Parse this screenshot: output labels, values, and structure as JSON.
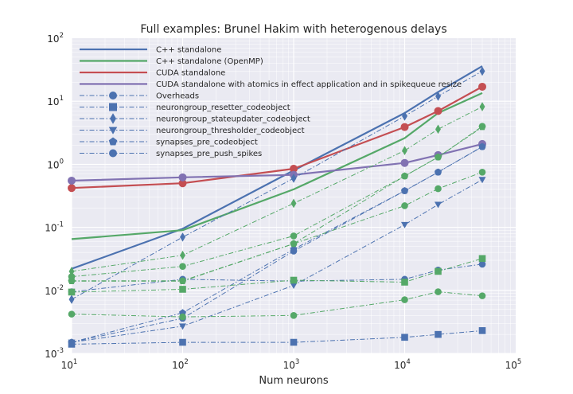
{
  "chart_data": {
    "type": "line",
    "title": "Full examples: Brunel Hakim with heterogenous delays",
    "xlabel": "Num neurons",
    "ylabel": "",
    "x_scale": "log",
    "y_scale": "log",
    "xlim": [
      10,
      100000
    ],
    "ylim": [
      0.001,
      100
    ],
    "x_ticks": [
      {
        "base": "10",
        "exp": "1",
        "value": 10
      },
      {
        "base": "10",
        "exp": "2",
        "value": 100
      },
      {
        "base": "10",
        "exp": "3",
        "value": 1000
      },
      {
        "base": "10",
        "exp": "4",
        "value": 10000
      },
      {
        "base": "10",
        "exp": "5",
        "value": 100000
      }
    ],
    "y_ticks": [
      {
        "base": "10",
        "exp": "-3",
        "value": 0.001
      },
      {
        "base": "10",
        "exp": "-2",
        "value": 0.01
      },
      {
        "base": "10",
        "exp": "-1",
        "value": 0.1
      },
      {
        "base": "10",
        "exp": "0",
        "value": 1
      },
      {
        "base": "10",
        "exp": "1",
        "value": 10
      },
      {
        "base": "10",
        "exp": "2",
        "value": 100
      }
    ],
    "grid": true,
    "legend_position": "top-left",
    "colors": {
      "blue": "#4c72b0",
      "green": "#55a868",
      "red": "#c44e52",
      "purple": "#8172b2"
    },
    "legend": [
      {
        "label": "C++ standalone",
        "color": "#4c72b0",
        "style": "solid",
        "marker": "none"
      },
      {
        "label": "C++ standalone (OpenMP)",
        "color": "#55a868",
        "style": "solid",
        "marker": "none"
      },
      {
        "label": "CUDA standalone",
        "color": "#c44e52",
        "style": "solid",
        "marker": "none"
      },
      {
        "label": "CUDA standalone with atomics in effect application and in spikequeue resize",
        "color": "#8172b2",
        "style": "solid",
        "marker": "none"
      },
      {
        "label": "Overheads",
        "color": "#4c72b0",
        "style": "dashdot",
        "marker": "circle"
      },
      {
        "label": "neurongroup_resetter_codeobject",
        "color": "#4c72b0",
        "style": "dashdot",
        "marker": "square"
      },
      {
        "label": "neurongroup_stateupdater_codeobject",
        "color": "#4c72b0",
        "style": "dashdot",
        "marker": "diamond"
      },
      {
        "label": "neurongroup_thresholder_codeobject",
        "color": "#4c72b0",
        "style": "dashdot",
        "marker": "triangle_down"
      },
      {
        "label": "synapses_pre_codeobject",
        "color": "#4c72b0",
        "style": "dashdot",
        "marker": "pentagon"
      },
      {
        "label": "synapses_pre_push_spikes",
        "color": "#4c72b0",
        "style": "dashdot",
        "marker": "hexagon"
      }
    ],
    "series": [
      {
        "name": "C++ standalone",
        "color": "#4c72b0",
        "style": "solid",
        "marker": "none",
        "width": 2.2,
        "x": [
          10,
          100,
          1000,
          10000,
          20000,
          50000
        ],
        "y": [
          0.022,
          0.095,
          0.8,
          6.5,
          14,
          36
        ]
      },
      {
        "name": "C++ standalone (OpenMP)",
        "color": "#55a868",
        "style": "solid",
        "marker": "none",
        "width": 2.2,
        "x": [
          10,
          100,
          1000,
          10000,
          20000,
          50000
        ],
        "y": [
          0.065,
          0.09,
          0.4,
          2.6,
          6.5,
          13.5
        ]
      },
      {
        "name": "CUDA standalone",
        "color": "#c44e52",
        "style": "solid",
        "marker": "circle",
        "width": 2.2,
        "x": [
          10,
          100,
          1000,
          10000,
          20000,
          50000
        ],
        "y": [
          0.42,
          0.5,
          0.85,
          3.9,
          7.0,
          17.0
        ]
      },
      {
        "name": "CUDA standalone with atomics in effect application and in spikequeue resize",
        "color": "#8172b2",
        "style": "solid",
        "marker": "circle",
        "width": 2.2,
        "x": [
          10,
          100,
          1000,
          10000,
          20000,
          50000
        ],
        "y": [
          0.55,
          0.62,
          0.68,
          1.05,
          1.4,
          2.1
        ]
      },
      {
        "name": "Overheads",
        "color": "#4c72b0",
        "style": "dashdot",
        "marker": "circle",
        "x": [
          10,
          100,
          1000,
          10000,
          20000,
          50000
        ],
        "y": [
          0.0095,
          0.015,
          0.014,
          0.015,
          0.021,
          0.026
        ]
      },
      {
        "name": "neurongroup_resetter_codeobject",
        "color": "#4c72b0",
        "style": "dashdot",
        "marker": "square",
        "x": [
          10,
          100,
          1000,
          10000,
          20000,
          50000
        ],
        "y": [
          0.0014,
          0.0015,
          0.0015,
          0.0018,
          0.002,
          0.0023
        ]
      },
      {
        "name": "neurongroup_stateupdater_codeobject",
        "color": "#4c72b0",
        "style": "dashdot",
        "marker": "diamond",
        "x": [
          10,
          100,
          1000,
          10000,
          20000,
          50000
        ],
        "y": [
          0.0072,
          0.07,
          0.6,
          5.8,
          12,
          30
        ]
      },
      {
        "name": "neurongroup_thresholder_codeobject",
        "color": "#4c72b0",
        "style": "dashdot",
        "marker": "triangle_down",
        "x": [
          10,
          100,
          1000,
          10000,
          20000,
          50000
        ],
        "y": [
          0.0015,
          0.0027,
          0.012,
          0.11,
          0.23,
          0.57
        ]
      },
      {
        "name": "synapses_pre_codeobject",
        "color": "#4c72b0",
        "style": "dashdot",
        "marker": "pentagon",
        "x": [
          10,
          100,
          1000,
          10000,
          20000,
          50000
        ],
        "y": [
          0.0015,
          0.0044,
          0.045,
          0.38,
          0.75,
          1.9
        ]
      },
      {
        "name": "synapses_pre_push_spikes",
        "color": "#4c72b0",
        "style": "dashdot",
        "marker": "hexagon",
        "x": [
          10,
          100,
          1000,
          10000,
          20000,
          50000
        ],
        "y": [
          0.0015,
          0.0036,
          0.042,
          0.38,
          0.75,
          1.9
        ]
      },
      {
        "name": "",
        "color": "#55a868",
        "style": "dashdot",
        "marker": "circle",
        "x": [
          10,
          100,
          1000,
          10000,
          20000,
          50000
        ],
        "y": [
          0.0042,
          0.0038,
          0.004,
          0.0071,
          0.0095,
          0.0082
        ]
      },
      {
        "name": "",
        "color": "#55a868",
        "style": "dashdot",
        "marker": "square",
        "x": [
          10,
          100,
          1000,
          10000,
          20000,
          50000
        ],
        "y": [
          0.0094,
          0.0104,
          0.0145,
          0.0135,
          0.02,
          0.032
        ]
      },
      {
        "name": "",
        "color": "#55a868",
        "style": "dashdot",
        "marker": "diamond",
        "x": [
          10,
          100,
          1000,
          10000,
          20000,
          50000
        ],
        "y": [
          0.02,
          0.036,
          0.24,
          1.65,
          3.6,
          8.2
        ]
      },
      {
        "name": "",
        "color": "#55a868",
        "style": "dashdot",
        "marker": "circle",
        "x": [
          10,
          100,
          1000,
          10000,
          20000,
          50000
        ],
        "y": [
          0.0165,
          0.024,
          0.073,
          0.65,
          1.3,
          4.0
        ]
      },
      {
        "name": "",
        "color": "#55a868",
        "style": "dashdot",
        "marker": "circle",
        "x": [
          10,
          100,
          1000,
          10000,
          20000,
          50000
        ],
        "y": [
          0.0142,
          0.0142,
          0.055,
          0.22,
          0.41,
          0.75
        ]
      },
      {
        "name": "",
        "color": "#55a868",
        "style": "dashdot",
        "marker": "pentagon",
        "x": [
          10,
          100,
          1000,
          10000,
          20000,
          50000
        ],
        "y": [
          0.014,
          0.014,
          0.055,
          0.65,
          1.3,
          3.9
        ]
      }
    ]
  }
}
